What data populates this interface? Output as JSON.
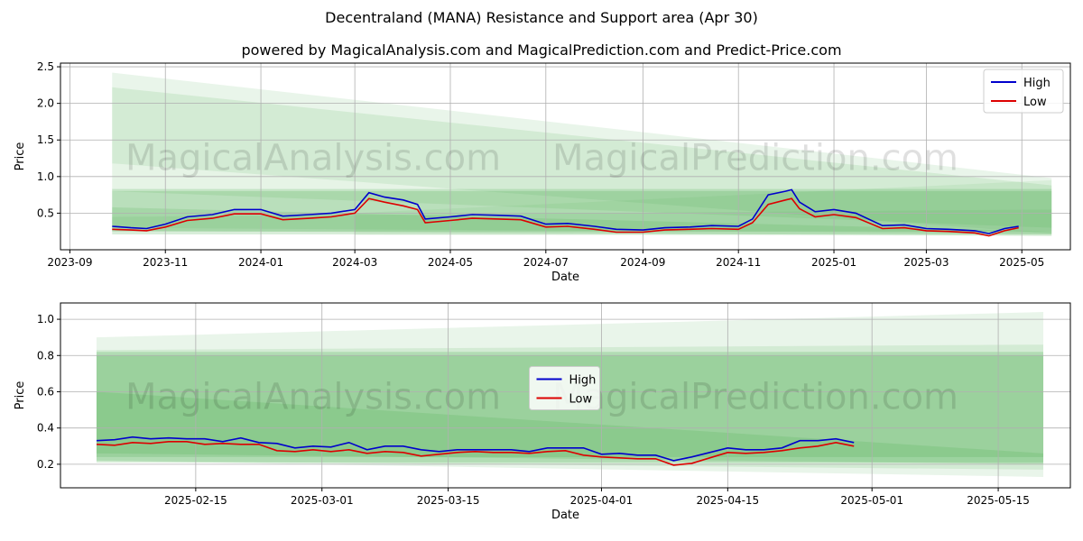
{
  "figure": {
    "title": "Decentraland (MANA) Resistance and Support area (Apr 30)",
    "subtitle": "powered by MagicalAnalysis.com and MagicalPrediction.com and Predict-Price.com",
    "watermark_left": "MagicalAnalysis.com",
    "watermark_right": "MagicalPrediction.com"
  },
  "colors": {
    "high": "#0000cc",
    "low": "#dd0000",
    "band": "#4caf50"
  },
  "chart_data": [
    {
      "type": "line",
      "xlabel": "Date",
      "ylabel": "Price",
      "x_ticks": [
        "2023-09",
        "2023-11",
        "2024-01",
        "2024-03",
        "2024-05",
        "2024-07",
        "2024-09",
        "2024-11",
        "2025-01",
        "2025-03",
        "2025-05"
      ],
      "y_ticks": [
        "0.5",
        "1.0",
        "1.5",
        "2.0",
        "2.5"
      ],
      "xlim": [
        "2023-08-26",
        "2025-06-01"
      ],
      "ylim": [
        0,
        2.55
      ],
      "grid": true,
      "legend_position": "top-right",
      "series": [
        {
          "name": "High",
          "x": [
            "2023-09-28",
            "2023-10-10",
            "2023-10-20",
            "2023-11-01",
            "2023-11-15",
            "2023-12-01",
            "2023-12-15",
            "2024-01-01",
            "2024-01-15",
            "2024-02-01",
            "2024-02-15",
            "2024-03-01",
            "2024-03-10",
            "2024-03-20",
            "2024-04-01",
            "2024-04-10",
            "2024-04-15",
            "2024-05-01",
            "2024-05-15",
            "2024-06-01",
            "2024-06-15",
            "2024-07-01",
            "2024-07-15",
            "2024-08-01",
            "2024-08-15",
            "2024-09-01",
            "2024-09-15",
            "2024-10-01",
            "2024-10-15",
            "2024-11-01",
            "2024-11-10",
            "2024-11-20",
            "2024-12-01",
            "2024-12-05",
            "2024-12-10",
            "2024-12-20",
            "2025-01-01",
            "2025-01-15",
            "2025-02-01",
            "2025-02-15",
            "2025-03-01",
            "2025-03-15",
            "2025-04-01",
            "2025-04-10",
            "2025-04-20",
            "2025-04-29"
          ],
          "values": [
            0.32,
            0.3,
            0.29,
            0.35,
            0.45,
            0.48,
            0.55,
            0.55,
            0.46,
            0.48,
            0.5,
            0.55,
            0.78,
            0.72,
            0.68,
            0.62,
            0.42,
            0.45,
            0.48,
            0.47,
            0.46,
            0.35,
            0.36,
            0.32,
            0.28,
            0.27,
            0.3,
            0.31,
            0.33,
            0.32,
            0.42,
            0.75,
            0.8,
            0.82,
            0.65,
            0.52,
            0.55,
            0.5,
            0.33,
            0.34,
            0.29,
            0.28,
            0.26,
            0.22,
            0.29,
            0.32
          ]
        },
        {
          "name": "Low",
          "x": [
            "2023-09-28",
            "2023-10-10",
            "2023-10-20",
            "2023-11-01",
            "2023-11-15",
            "2023-12-01",
            "2023-12-15",
            "2024-01-01",
            "2024-01-15",
            "2024-02-01",
            "2024-02-15",
            "2024-03-01",
            "2024-03-10",
            "2024-03-20",
            "2024-04-01",
            "2024-04-10",
            "2024-04-15",
            "2024-05-01",
            "2024-05-15",
            "2024-06-01",
            "2024-06-15",
            "2024-07-01",
            "2024-07-15",
            "2024-08-01",
            "2024-08-15",
            "2024-09-01",
            "2024-09-15",
            "2024-10-01",
            "2024-10-15",
            "2024-11-01",
            "2024-11-10",
            "2024-11-20",
            "2024-12-01",
            "2024-12-05",
            "2024-12-10",
            "2024-12-20",
            "2025-01-01",
            "2025-01-15",
            "2025-02-01",
            "2025-02-15",
            "2025-03-01",
            "2025-03-15",
            "2025-04-01",
            "2025-04-10",
            "2025-04-20",
            "2025-04-29"
          ],
          "values": [
            0.28,
            0.27,
            0.26,
            0.31,
            0.4,
            0.43,
            0.49,
            0.49,
            0.41,
            0.43,
            0.45,
            0.5,
            0.7,
            0.65,
            0.6,
            0.55,
            0.37,
            0.4,
            0.43,
            0.42,
            0.41,
            0.31,
            0.32,
            0.28,
            0.24,
            0.24,
            0.27,
            0.28,
            0.29,
            0.28,
            0.37,
            0.62,
            0.68,
            0.7,
            0.56,
            0.45,
            0.48,
            0.44,
            0.29,
            0.3,
            0.26,
            0.25,
            0.23,
            0.19,
            0.26,
            0.3
          ]
        }
      ],
      "bands": [
        {
          "x": [
            "2023-09-28",
            "2025-05-20"
          ],
          "top": [
            2.42,
            0.98
          ],
          "bottom": [
            1.18,
            0.22
          ],
          "opacity": 0.12
        },
        {
          "x": [
            "2023-09-28",
            "2025-05-20"
          ],
          "top": [
            2.22,
            0.88
          ],
          "bottom": [
            0.8,
            0.3
          ],
          "opacity": 0.14
        },
        {
          "x": [
            "2023-09-28",
            "2025-05-20"
          ],
          "top": [
            0.83,
            0.83
          ],
          "bottom": [
            0.21,
            0.21
          ],
          "opacity": 0.22
        },
        {
          "x": [
            "2023-09-28",
            "2025-05-20"
          ],
          "top": [
            0.8,
            0.8
          ],
          "bottom": [
            0.25,
            0.25
          ],
          "opacity": 0.22
        },
        {
          "x": [
            "2023-09-28",
            "2025-05-20"
          ],
          "top": [
            0.58,
            0.25
          ],
          "bottom": [
            0.26,
            0.19
          ],
          "opacity": 0.18
        },
        {
          "x": [
            "2023-09-28",
            "2025-05-20"
          ],
          "top": [
            0.45,
            0.55
          ],
          "bottom": [
            0.3,
            0.22
          ],
          "opacity": 0.12
        },
        {
          "x": [
            "2024-03-01",
            "2025-05-20"
          ],
          "top": [
            0.5,
            0.95
          ],
          "bottom": [
            0.2,
            0.19
          ],
          "opacity": 0.1
        }
      ]
    },
    {
      "type": "line",
      "xlabel": "Date",
      "ylabel": "Price",
      "x_ticks": [
        "2025-02-15",
        "2025-03-01",
        "2025-03-15",
        "2025-04-01",
        "2025-04-15",
        "2025-05-01",
        "2025-05-15"
      ],
      "y_ticks": [
        "0.2",
        "0.4",
        "0.6",
        "0.8",
        "1.0"
      ],
      "xlim": [
        "2025-01-31",
        "2025-05-23"
      ],
      "ylim": [
        0.07,
        1.09
      ],
      "grid": true,
      "legend_position": "center",
      "series": [
        {
          "name": "High",
          "x": [
            "2025-02-04",
            "2025-02-06",
            "2025-02-08",
            "2025-02-10",
            "2025-02-12",
            "2025-02-14",
            "2025-02-16",
            "2025-02-18",
            "2025-02-20",
            "2025-02-22",
            "2025-02-24",
            "2025-02-26",
            "2025-02-28",
            "2025-03-02",
            "2025-03-04",
            "2025-03-06",
            "2025-03-08",
            "2025-03-10",
            "2025-03-12",
            "2025-03-14",
            "2025-03-16",
            "2025-03-18",
            "2025-03-20",
            "2025-03-22",
            "2025-03-24",
            "2025-03-26",
            "2025-03-28",
            "2025-03-30",
            "2025-04-01",
            "2025-04-03",
            "2025-04-05",
            "2025-04-07",
            "2025-04-09",
            "2025-04-11",
            "2025-04-13",
            "2025-04-15",
            "2025-04-17",
            "2025-04-19",
            "2025-04-21",
            "2025-04-23",
            "2025-04-25",
            "2025-04-27",
            "2025-04-29"
          ],
          "values": [
            0.33,
            0.335,
            0.35,
            0.34,
            0.345,
            0.34,
            0.34,
            0.325,
            0.345,
            0.32,
            0.315,
            0.29,
            0.3,
            0.295,
            0.32,
            0.28,
            0.3,
            0.3,
            0.28,
            0.27,
            0.28,
            0.28,
            0.28,
            0.28,
            0.27,
            0.29,
            0.29,
            0.29,
            0.255,
            0.26,
            0.25,
            0.25,
            0.22,
            0.24,
            0.265,
            0.29,
            0.28,
            0.28,
            0.29,
            0.33,
            0.33,
            0.34,
            0.32
          ]
        },
        {
          "name": "Low",
          "x": [
            "2025-02-04",
            "2025-02-06",
            "2025-02-08",
            "2025-02-10",
            "2025-02-12",
            "2025-02-14",
            "2025-02-16",
            "2025-02-18",
            "2025-02-20",
            "2025-02-22",
            "2025-02-24",
            "2025-02-26",
            "2025-02-28",
            "2025-03-02",
            "2025-03-04",
            "2025-03-06",
            "2025-03-08",
            "2025-03-10",
            "2025-03-12",
            "2025-03-14",
            "2025-03-16",
            "2025-03-18",
            "2025-03-20",
            "2025-03-22",
            "2025-03-24",
            "2025-03-26",
            "2025-03-28",
            "2025-03-30",
            "2025-04-01",
            "2025-04-03",
            "2025-04-05",
            "2025-04-07",
            "2025-04-09",
            "2025-04-11",
            "2025-04-13",
            "2025-04-15",
            "2025-04-17",
            "2025-04-19",
            "2025-04-21",
            "2025-04-23",
            "2025-04-25",
            "2025-04-27",
            "2025-04-29"
          ],
          "values": [
            0.31,
            0.305,
            0.32,
            0.315,
            0.325,
            0.325,
            0.31,
            0.315,
            0.31,
            0.31,
            0.275,
            0.27,
            0.28,
            0.27,
            0.28,
            0.26,
            0.27,
            0.265,
            0.245,
            0.255,
            0.265,
            0.27,
            0.265,
            0.265,
            0.26,
            0.27,
            0.275,
            0.25,
            0.24,
            0.235,
            0.23,
            0.23,
            0.195,
            0.205,
            0.235,
            0.265,
            0.26,
            0.265,
            0.275,
            0.29,
            0.3,
            0.32,
            0.3
          ]
        }
      ],
      "bands": [
        {
          "x": [
            "2025-02-04",
            "2025-05-20"
          ],
          "top": [
            0.9,
            1.04
          ],
          "bottom": [
            0.22,
            0.13
          ],
          "opacity": 0.12
        },
        {
          "x": [
            "2025-02-04",
            "2025-05-20"
          ],
          "top": [
            0.83,
            0.86
          ],
          "bottom": [
            0.22,
            0.17
          ],
          "opacity": 0.14
        },
        {
          "x": [
            "2025-02-04",
            "2025-05-20"
          ],
          "top": [
            0.82,
            0.82
          ],
          "bottom": [
            0.21,
            0.21
          ],
          "opacity": 0.25
        },
        {
          "x": [
            "2025-02-04",
            "2025-05-20"
          ],
          "top": [
            0.8,
            0.8
          ],
          "bottom": [
            0.24,
            0.24
          ],
          "opacity": 0.22
        },
        {
          "x": [
            "2025-02-04",
            "2025-05-20"
          ],
          "top": [
            0.6,
            0.26
          ],
          "bottom": [
            0.26,
            0.2
          ],
          "opacity": 0.2
        }
      ]
    }
  ]
}
